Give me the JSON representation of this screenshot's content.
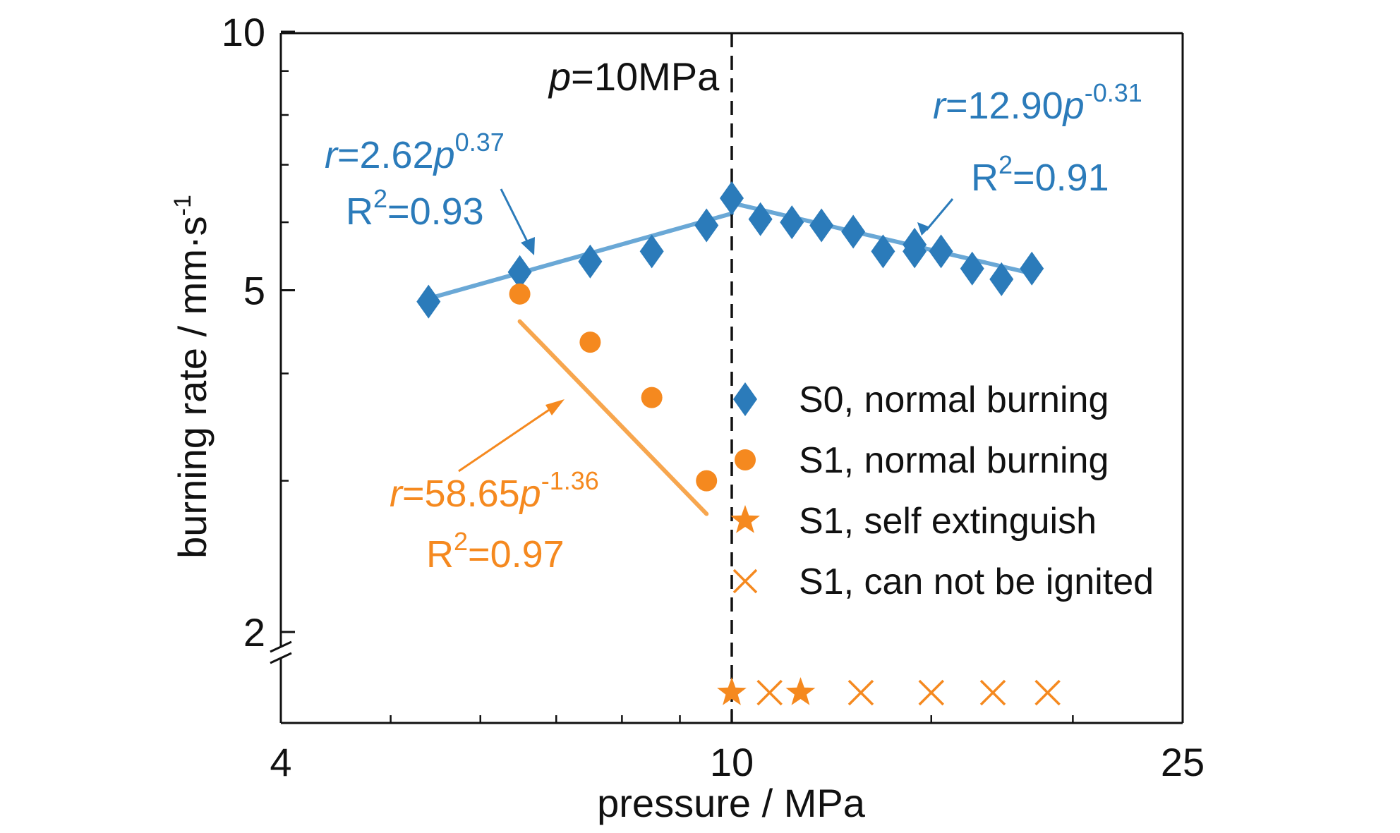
{
  "chart_data": {
    "type": "scatter",
    "xlabel": "pressure / MPa",
    "ylabel": "burning rate / mm·s",
    "ylabel_sup": "-1",
    "x_scale": "log",
    "y_scale": "log",
    "xlim": [
      4,
      25
    ],
    "ylim": [
      2,
      10
    ],
    "y_axis_break_below": 2,
    "x_ticks": [
      {
        "value": 4,
        "label": "4"
      },
      {
        "value": 10,
        "label": "10"
      },
      {
        "value": 25,
        "label": "25"
      }
    ],
    "x_minor_ticks": [
      5,
      6,
      7,
      8,
      9,
      15,
      20
    ],
    "y_ticks": [
      {
        "value": 2,
        "label": "2"
      },
      {
        "value": 5,
        "label": "5"
      },
      {
        "value": 10,
        "label": "10"
      }
    ],
    "y_minor_ticks": [
      3,
      4,
      6,
      7,
      8,
      9
    ],
    "grid": false,
    "legend_position": "right",
    "colors": {
      "s0": "#2b7bba",
      "s1": "#f5891f",
      "s0_fit": "#6aa8d6",
      "s1_fit": "#f7a64e"
    },
    "vline": {
      "x": 10,
      "label_italic": "p",
      "label_rest": "=10MPa"
    },
    "series": [
      {
        "name": "S0, normal burning",
        "marker": "diamond",
        "color": "#2b7bba",
        "points": [
          [
            5.4,
            4.85
          ],
          [
            6.5,
            5.25
          ],
          [
            7.5,
            5.4
          ],
          [
            8.5,
            5.55
          ],
          [
            9.5,
            5.95
          ],
          [
            10.0,
            6.4
          ],
          [
            10.6,
            6.05
          ],
          [
            11.3,
            6.0
          ],
          [
            12.0,
            5.95
          ],
          [
            12.8,
            5.85
          ],
          [
            13.6,
            5.55
          ],
          [
            14.5,
            5.55
          ],
          [
            14.5,
            5.65
          ],
          [
            15.3,
            5.55
          ],
          [
            16.3,
            5.3
          ],
          [
            17.3,
            5.15
          ],
          [
            18.4,
            5.3
          ]
        ]
      },
      {
        "name": "S1, normal burning",
        "marker": "circle",
        "color": "#f5891f",
        "points": [
          [
            6.5,
            4.95
          ],
          [
            7.5,
            4.35
          ],
          [
            8.5,
            3.75
          ],
          [
            9.5,
            3.0
          ]
        ]
      },
      {
        "name": "S1, self extinguish",
        "marker": "star",
        "color": "#f5891f",
        "x": [
          10.0,
          11.5
        ]
      },
      {
        "name": "S1, can not be ignited",
        "marker": "x",
        "color": "#f5891f",
        "x": [
          10.8,
          13.0,
          15.0,
          17.0,
          19.0
        ]
      }
    ],
    "fits": [
      {
        "series": 0,
        "a": 2.62,
        "b": 0.37,
        "x_range": [
          5.4,
          10.0
        ],
        "color": "#6aa8d6"
      },
      {
        "series": 0,
        "a": 12.9,
        "b": -0.31,
        "x_range": [
          10.0,
          18.4
        ],
        "color": "#6aa8d6"
      },
      {
        "series": 1,
        "a": 58.65,
        "b": -1.36,
        "x_range": [
          6.5,
          9.5
        ],
        "color": "#f7a64e"
      }
    ],
    "annotations": [
      {
        "color": "#2b7bba",
        "r_text": "=2.62",
        "p_exp": "0.37",
        "r2_text": "=0.93"
      },
      {
        "color": "#2b7bba",
        "r_text": "=12.90",
        "p_exp": "-0.31",
        "r2_text": "=0.91"
      },
      {
        "color": "#f5891f",
        "r_text": "=58.65",
        "p_exp": "-1.36",
        "r2_text": "=0.97"
      }
    ]
  }
}
